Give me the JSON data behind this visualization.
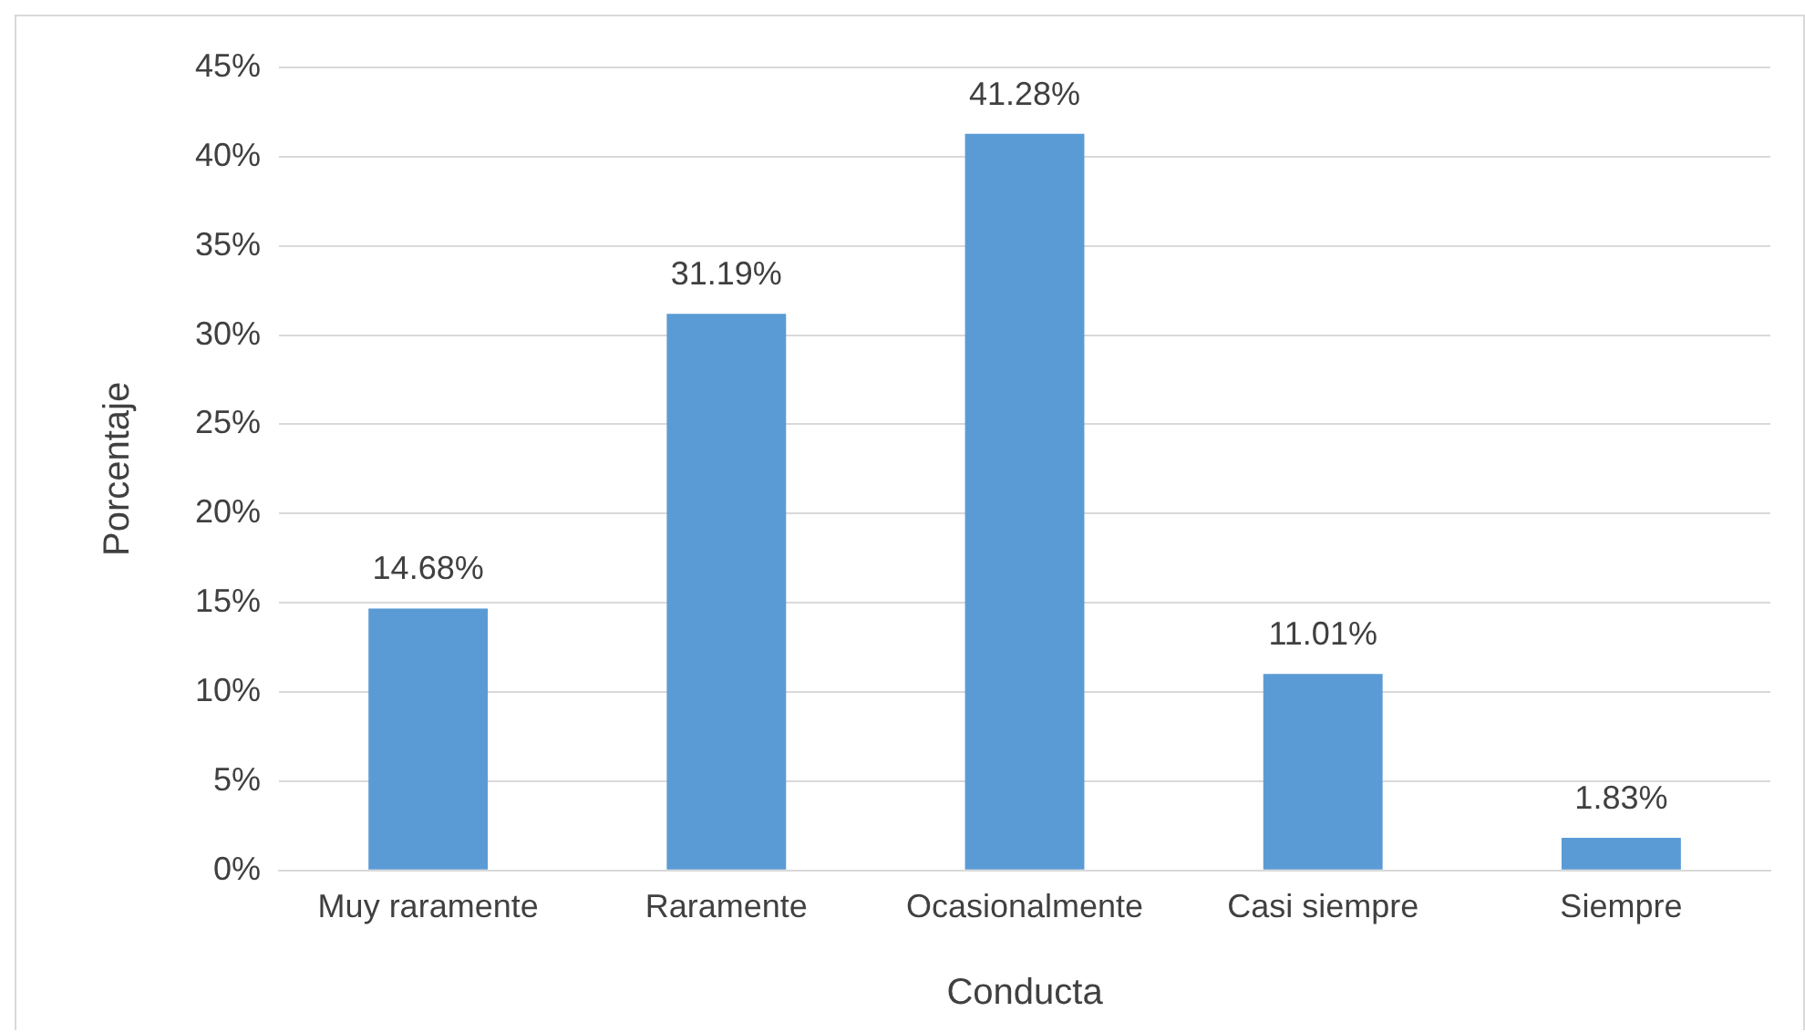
{
  "chart_data": {
    "type": "bar",
    "xlabel": "Conducta",
    "ylabel": "Porcentaje",
    "categories": [
      "Muy raramente",
      "Raramente",
      "Ocasionalmente",
      "Casi siempre",
      "Siempre"
    ],
    "values": [
      14.68,
      31.19,
      41.28,
      11.01,
      1.83
    ],
    "value_labels": [
      "14.68%",
      "31.19%",
      "41.28%",
      "11.01%",
      "1.83%"
    ],
    "color": "#5b9bd5",
    "ylim": [
      0,
      45
    ],
    "yticks": [
      {
        "value": 0,
        "label": "0%"
      },
      {
        "value": 5,
        "label": "5%"
      },
      {
        "value": 10,
        "label": "10%"
      },
      {
        "value": 15,
        "label": "15%"
      },
      {
        "value": 20,
        "label": "20%"
      },
      {
        "value": 25,
        "label": "25%"
      },
      {
        "value": 30,
        "label": "30%"
      },
      {
        "value": 35,
        "label": "35%"
      },
      {
        "value": 40,
        "label": "40%"
      },
      {
        "value": 45,
        "label": "45%"
      }
    ],
    "grid": "y",
    "legend": false
  }
}
